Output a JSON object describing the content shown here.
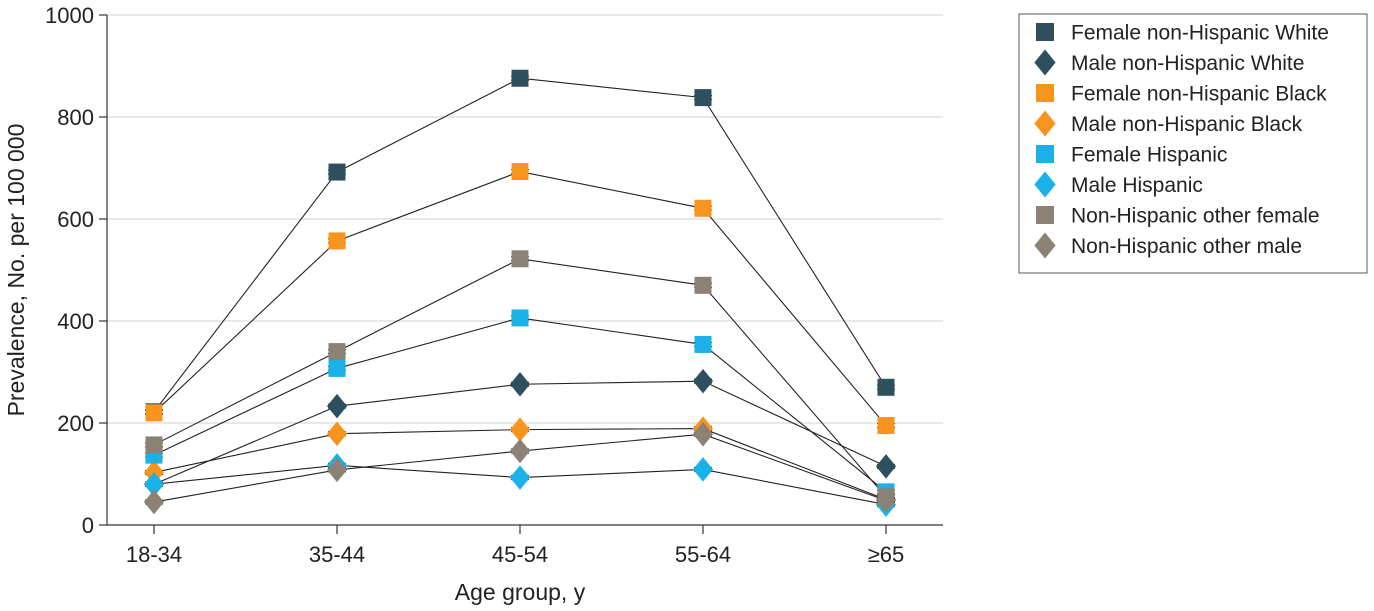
{
  "chart_data": {
    "type": "line",
    "categories": [
      "18-34",
      "35-44",
      "45-54",
      "55-64",
      "≥65"
    ],
    "xlabel": "Age group, y",
    "ylabel": "Prevalence, No. per 100 000",
    "ylim": [
      0,
      1000
    ],
    "yticks": [
      "0",
      "200",
      "400",
      "600",
      "800",
      "1000"
    ],
    "grid": "horizontal",
    "legend_position": "right",
    "series": [
      {
        "name": "Female non-Hispanic White",
        "marker": "square",
        "color": "#2e4f5e",
        "values": [
          222,
          692,
          876,
          838,
          270
        ]
      },
      {
        "name": "Male non-Hispanic White",
        "marker": "diamond",
        "color": "#2e4f5e",
        "values": [
          80,
          233,
          276,
          282,
          115
        ]
      },
      {
        "name": "Female non-Hispanic Black",
        "marker": "square",
        "color": "#f7941d",
        "values": [
          220,
          557,
          693,
          621,
          195
        ]
      },
      {
        "name": "Male non-Hispanic Black",
        "marker": "diamond",
        "color": "#f7941d",
        "values": [
          103,
          179,
          187,
          189,
          50
        ]
      },
      {
        "name": "Female Hispanic",
        "marker": "square",
        "color": "#1ab0e8",
        "values": [
          137,
          307,
          406,
          354,
          65
        ]
      },
      {
        "name": "Male Hispanic",
        "marker": "diamond",
        "color": "#1ab0e8",
        "values": [
          80,
          117,
          93,
          109,
          40
        ]
      },
      {
        "name": "Non-Hispanic other female",
        "marker": "square",
        "color": "#8b8175",
        "values": [
          157,
          340,
          522,
          470,
          55
        ]
      },
      {
        "name": "Non-Hispanic other male",
        "marker": "diamond",
        "color": "#8b8175",
        "values": [
          45,
          108,
          145,
          178,
          48
        ]
      }
    ]
  }
}
